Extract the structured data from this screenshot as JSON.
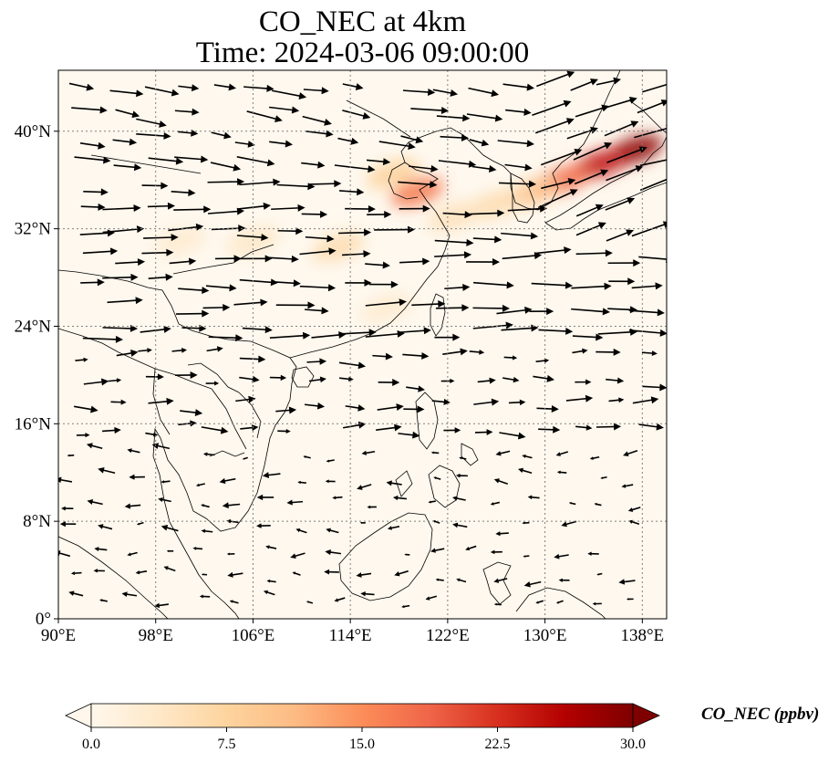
{
  "title": {
    "line1": "CO_NEC at 4km",
    "line2": "Time: 2024-03-06 09:00:00"
  },
  "map": {
    "extent": {
      "lon": [
        90,
        140
      ],
      "lat": [
        0,
        45
      ]
    },
    "lon_ticks": [
      {
        "value": 90,
        "label": "90°E"
      },
      {
        "value": 98,
        "label": "98°E"
      },
      {
        "value": 106,
        "label": "106°E"
      },
      {
        "value": 114,
        "label": "114°E"
      },
      {
        "value": 122,
        "label": "122°E"
      },
      {
        "value": 130,
        "label": "130°E"
      },
      {
        "value": 138,
        "label": "138°E"
      }
    ],
    "lat_ticks": [
      {
        "value": 0,
        "label": "0°"
      },
      {
        "value": 8,
        "label": "8°N"
      },
      {
        "value": 16,
        "label": "16°N"
      },
      {
        "value": 24,
        "label": "24°N"
      },
      {
        "value": 32,
        "label": "32°N"
      },
      {
        "value": 40,
        "label": "40°N"
      }
    ],
    "gridlines": true,
    "plume": [
      {
        "lon": 137.5,
        "lat": 38.5,
        "value": 29
      },
      {
        "lon": 134.5,
        "lat": 37.3,
        "value": 25
      },
      {
        "lon": 131.5,
        "lat": 36.0,
        "value": 18
      },
      {
        "lon": 129.0,
        "lat": 35.0,
        "value": 10
      },
      {
        "lon": 126.0,
        "lat": 34.0,
        "value": 6
      },
      {
        "lon": 119.5,
        "lat": 35.0,
        "value": 17
      },
      {
        "lon": 117.5,
        "lat": 36.5,
        "value": 8
      },
      {
        "lon": 122.5,
        "lat": 33.0,
        "value": 5
      },
      {
        "lon": 113.0,
        "lat": 30.5,
        "value": 6
      },
      {
        "lon": 106.0,
        "lat": 31.0,
        "value": 4
      },
      {
        "lon": 100.0,
        "lat": 31.0,
        "value": 3
      },
      {
        "lon": 117.0,
        "lat": 25.5,
        "value": 3
      }
    ]
  },
  "colorbar": {
    "label": "CO_NEC (ppbv)",
    "min": 0,
    "max": 30,
    "extend": "both",
    "colormap": "OrRd",
    "stops": [
      "#fff7ec",
      "#fee8c8",
      "#fdd49e",
      "#fdbb84",
      "#fc8d59",
      "#ef6548",
      "#d7301f",
      "#b30000",
      "#7f0000"
    ],
    "ticks": [
      {
        "value": 0,
        "label": "0.0"
      },
      {
        "value": 7.5,
        "label": "7.5"
      },
      {
        "value": 15,
        "label": "15.0"
      },
      {
        "value": 22.5,
        "label": "22.5"
      },
      {
        "value": 30,
        "label": "30.0"
      }
    ]
  },
  "colors": {
    "background": "#fef8ee",
    "coastline": "#000000",
    "grid": "#808080",
    "arrow": "#000000"
  }
}
